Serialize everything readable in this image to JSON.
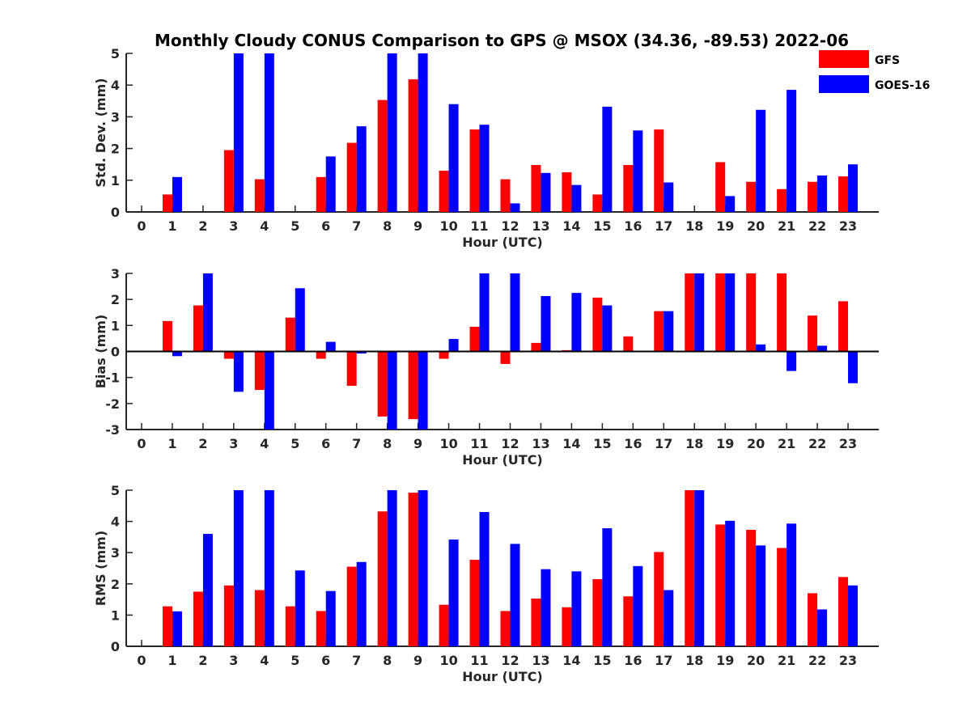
{
  "chart_data": {
    "title": "Monthly Cloudy CONUS Comparison to GPS @ MSOX (34.36, -89.53) 2022-06",
    "legend": {
      "placement": "top-right",
      "entries": [
        {
          "name": "GFS",
          "color": "#ff0000"
        },
        {
          "name": "GOES-16",
          "color": "#0000ff"
        }
      ]
    },
    "panels": [
      {
        "type": "bar",
        "ylabel": "Std. Dev. (mm)",
        "xlabel": "Hour (UTC)",
        "ylim": [
          0,
          5
        ],
        "yticks": [
          0,
          1,
          2,
          3,
          4,
          5
        ],
        "categories": [
          "0",
          "1",
          "2",
          "3",
          "4",
          "5",
          "6",
          "7",
          "8",
          "9",
          "10",
          "11",
          "12",
          "13",
          "14",
          "15",
          "16",
          "17",
          "18",
          "19",
          "20",
          "21",
          "22",
          "23"
        ],
        "series": [
          {
            "name": "GFS",
            "color": "#ff0000",
            "values": [
              null,
              0.55,
              null,
              1.95,
              1.03,
              null,
              1.1,
              2.18,
              3.53,
              4.18,
              1.3,
              2.6,
              1.03,
              1.48,
              1.25,
              0.55,
              1.48,
              2.6,
              null,
              1.57,
              0.95,
              0.72,
              0.95,
              1.12
            ]
          },
          {
            "name": "GOES-16",
            "color": "#0000ff",
            "values": [
              null,
              1.1,
              null,
              5,
              5,
              null,
              1.75,
              2.7,
              5,
              5,
              3.4,
              2.75,
              0.27,
              1.23,
              0.85,
              3.32,
              2.57,
              0.93,
              null,
              0.5,
              3.22,
              3.85,
              1.15,
              1.5
            ]
          }
        ]
      },
      {
        "type": "bar",
        "ylabel": "Bias (mm)",
        "xlabel": "Hour (UTC)",
        "ylim": [
          -3,
          3
        ],
        "yticks": [
          -3,
          -2,
          -1,
          0,
          1,
          2,
          3
        ],
        "zero_line": true,
        "categories": [
          "0",
          "1",
          "2",
          "3",
          "4",
          "5",
          "6",
          "7",
          "8",
          "9",
          "10",
          "11",
          "12",
          "13",
          "14",
          "15",
          "16",
          "17",
          "18",
          "19",
          "20",
          "21",
          "22",
          "23"
        ],
        "series": [
          {
            "name": "GFS",
            "color": "#ff0000",
            "values": [
              null,
              1.17,
              1.77,
              -0.28,
              -1.48,
              1.3,
              -0.28,
              -1.32,
              -2.5,
              -2.6,
              -0.28,
              0.95,
              -0.48,
              0.33,
              0.05,
              2.07,
              0.58,
              1.55,
              3,
              3,
              3,
              3,
              1.38,
              1.93
            ]
          },
          {
            "name": "GOES-16",
            "color": "#0000ff",
            "values": [
              null,
              -0.18,
              3,
              -1.55,
              -3,
              2.43,
              0.37,
              -0.08,
              -3,
              -3,
              0.48,
              3,
              3,
              2.13,
              2.25,
              1.77,
              null,
              1.55,
              3,
              3,
              0.27,
              -0.75,
              0.22,
              -1.22
            ]
          }
        ]
      },
      {
        "type": "bar",
        "ylabel": "RMS (mm)",
        "xlabel": "Hour (UTC)",
        "ylim": [
          0,
          5
        ],
        "yticks": [
          0,
          1,
          2,
          3,
          4,
          5
        ],
        "categories": [
          "0",
          "1",
          "2",
          "3",
          "4",
          "5",
          "6",
          "7",
          "8",
          "9",
          "10",
          "11",
          "12",
          "13",
          "14",
          "15",
          "16",
          "17",
          "18",
          "19",
          "20",
          "21",
          "22",
          "23"
        ],
        "series": [
          {
            "name": "GFS",
            "color": "#ff0000",
            "values": [
              null,
              1.28,
              1.75,
              1.95,
              1.8,
              1.28,
              1.13,
              2.55,
              4.32,
              4.92,
              1.33,
              2.77,
              1.13,
              1.53,
              1.25,
              2.15,
              1.6,
              3.02,
              5,
              3.9,
              3.73,
              3.15,
              1.7,
              2.22
            ]
          },
          {
            "name": "GOES-16",
            "color": "#0000ff",
            "values": [
              null,
              1.12,
              3.6,
              5,
              5,
              2.43,
              1.77,
              2.7,
              5,
              5,
              3.42,
              4.3,
              3.28,
              2.47,
              2.4,
              3.78,
              2.57,
              1.8,
              5,
              4.02,
              3.23,
              3.93,
              1.18,
              1.95
            ]
          }
        ]
      }
    ]
  }
}
